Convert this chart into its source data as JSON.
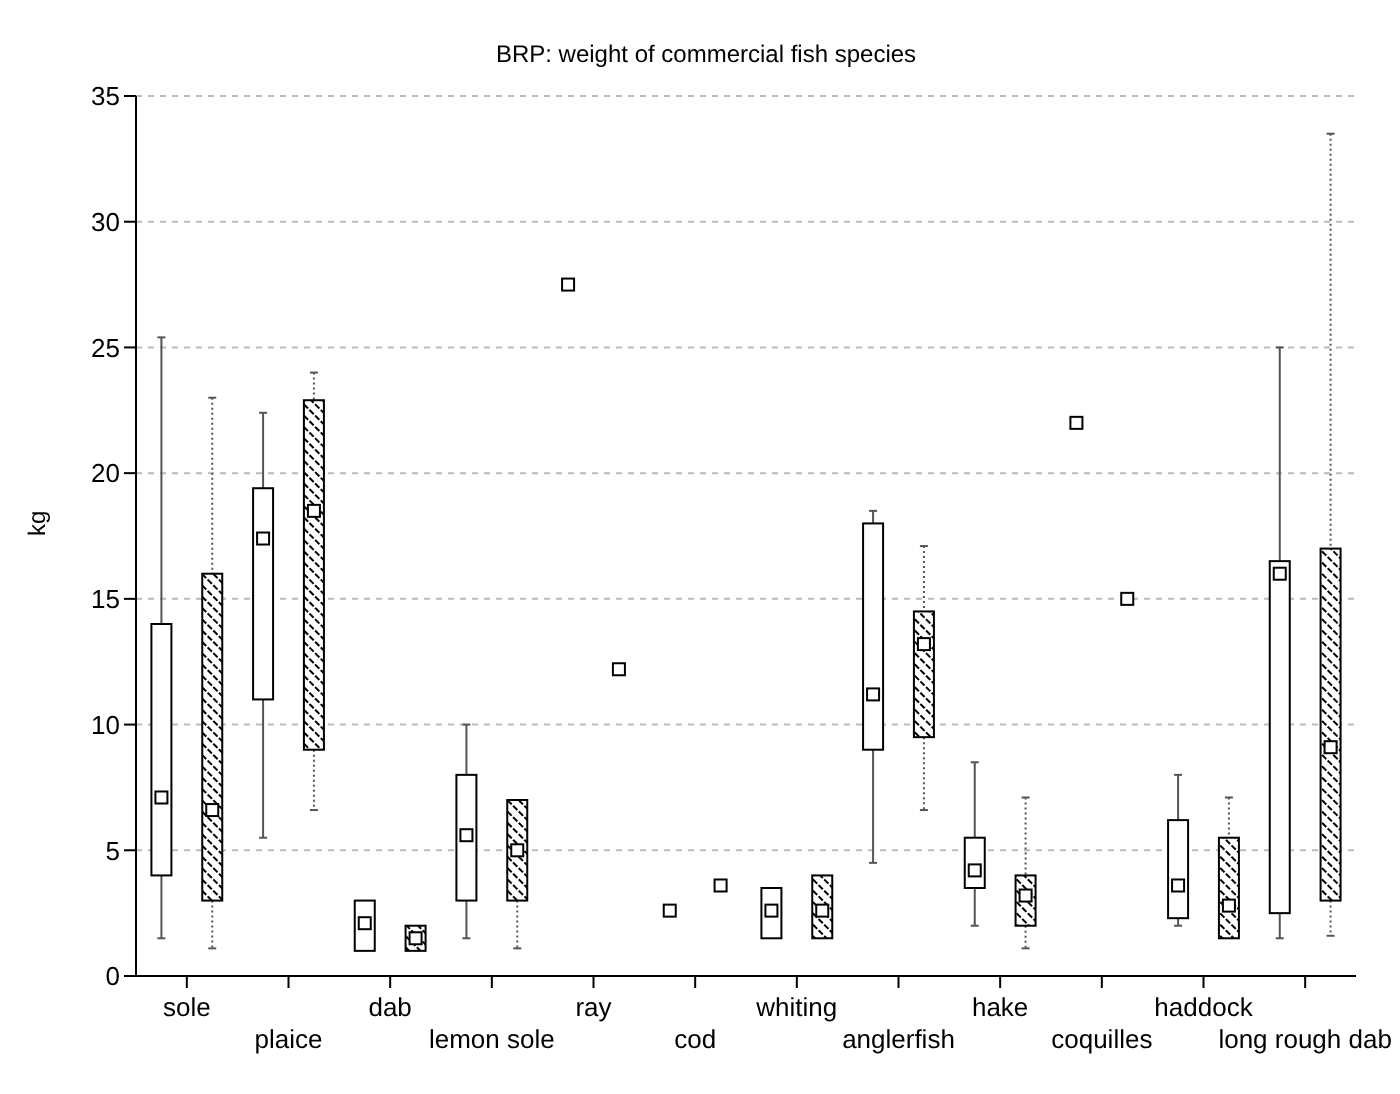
{
  "chart_data": {
    "type": "box",
    "title": "BRP: weight of commercial fish species",
    "ylabel": "kg",
    "categories": [
      "sole",
      "plaice",
      "dab",
      "lemon sole",
      "ray",
      "cod",
      "whiting",
      "anglerfish",
      "hake",
      "coquilles",
      "haddock",
      "long rough dab"
    ],
    "series": [
      {
        "color": "#000000",
        "line_style": "solid",
        "boxes": [
          {
            "low": 1.5,
            "q1": 4.0,
            "median": 7.1,
            "q3": 14.0,
            "high": 25.4
          },
          {
            "low": 5.5,
            "q1": 11.0,
            "median": 17.4,
            "q3": 19.4,
            "high": 22.4
          },
          {
            "low": 1.0,
            "q1": 1.0,
            "median": 2.1,
            "q3": 3.0,
            "high": 3.0
          },
          {
            "low": 1.5,
            "q1": 3.0,
            "median": 5.6,
            "q3": 8.0,
            "high": 10.0
          },
          null,
          null,
          {
            "low": 1.5,
            "q1": 1.5,
            "median": 2.6,
            "q3": 3.5,
            "high": 3.5
          },
          {
            "low": 4.5,
            "q1": 9.0,
            "median": 11.2,
            "q3": 18.0,
            "high": 18.5
          },
          {
            "low": 2.0,
            "q1": 3.5,
            "median": 4.2,
            "q3": 5.5,
            "high": 8.5
          },
          null,
          {
            "low": 2.0,
            "q1": 2.3,
            "median": 3.6,
            "q3": 6.2,
            "high": 8.0
          },
          {
            "low": 1.5,
            "q1": 2.5,
            "median": 16.0,
            "q3": 16.5,
            "high": 25.0
          }
        ]
      },
      {
        "color": "#000000",
        "line_style": "dotted",
        "boxes": [
          {
            "low": 1.1,
            "q1": 3.0,
            "median": 6.6,
            "q3": 16.0,
            "high": 23.0
          },
          {
            "low": 6.6,
            "q1": 9.0,
            "median": 18.5,
            "q3": 22.9,
            "high": 24.0
          },
          {
            "low": 1.0,
            "q1": 1.0,
            "median": 1.5,
            "q3": 2.0,
            "high": 2.0
          },
          {
            "low": 1.1,
            "q1": 3.0,
            "median": 5.0,
            "q3": 7.0,
            "high": 7.0
          },
          null,
          null,
          {
            "low": 1.5,
            "q1": 1.5,
            "median": 2.6,
            "q3": 4.0,
            "high": 4.0
          },
          {
            "low": 6.6,
            "q1": 9.5,
            "median": 13.2,
            "q3": 14.5,
            "high": 17.1
          },
          {
            "low": 1.1,
            "q1": 2.0,
            "median": 3.2,
            "q3": 4.0,
            "high": 7.1
          },
          null,
          {
            "low": 1.5,
            "q1": 1.5,
            "median": 2.8,
            "q3": 5.5,
            "high": 7.1
          },
          {
            "low": 1.6,
            "q1": 3.0,
            "median": 9.1,
            "q3": 17.0,
            "high": 33.5
          }
        ]
      },
      {
        "type": "scatter",
        "color": "#000000",
        "marker": "square",
        "x": [
          "ray",
          "cod",
          "coquilles"
        ],
        "values": [
          27.5,
          2.6,
          22.0
        ]
      },
      {
        "type": "scatter",
        "color": "#000000",
        "marker": "square",
        "x": [
          "ray",
          "cod",
          "coquilles"
        ],
        "values": [
          12.2,
          3.6,
          15.0
        ]
      }
    ],
    "ylim": [
      0,
      35
    ],
    "yticks": [
      0,
      5,
      10,
      15,
      20,
      25,
      30,
      35
    ],
    "grid": "y",
    "legend": false
  }
}
